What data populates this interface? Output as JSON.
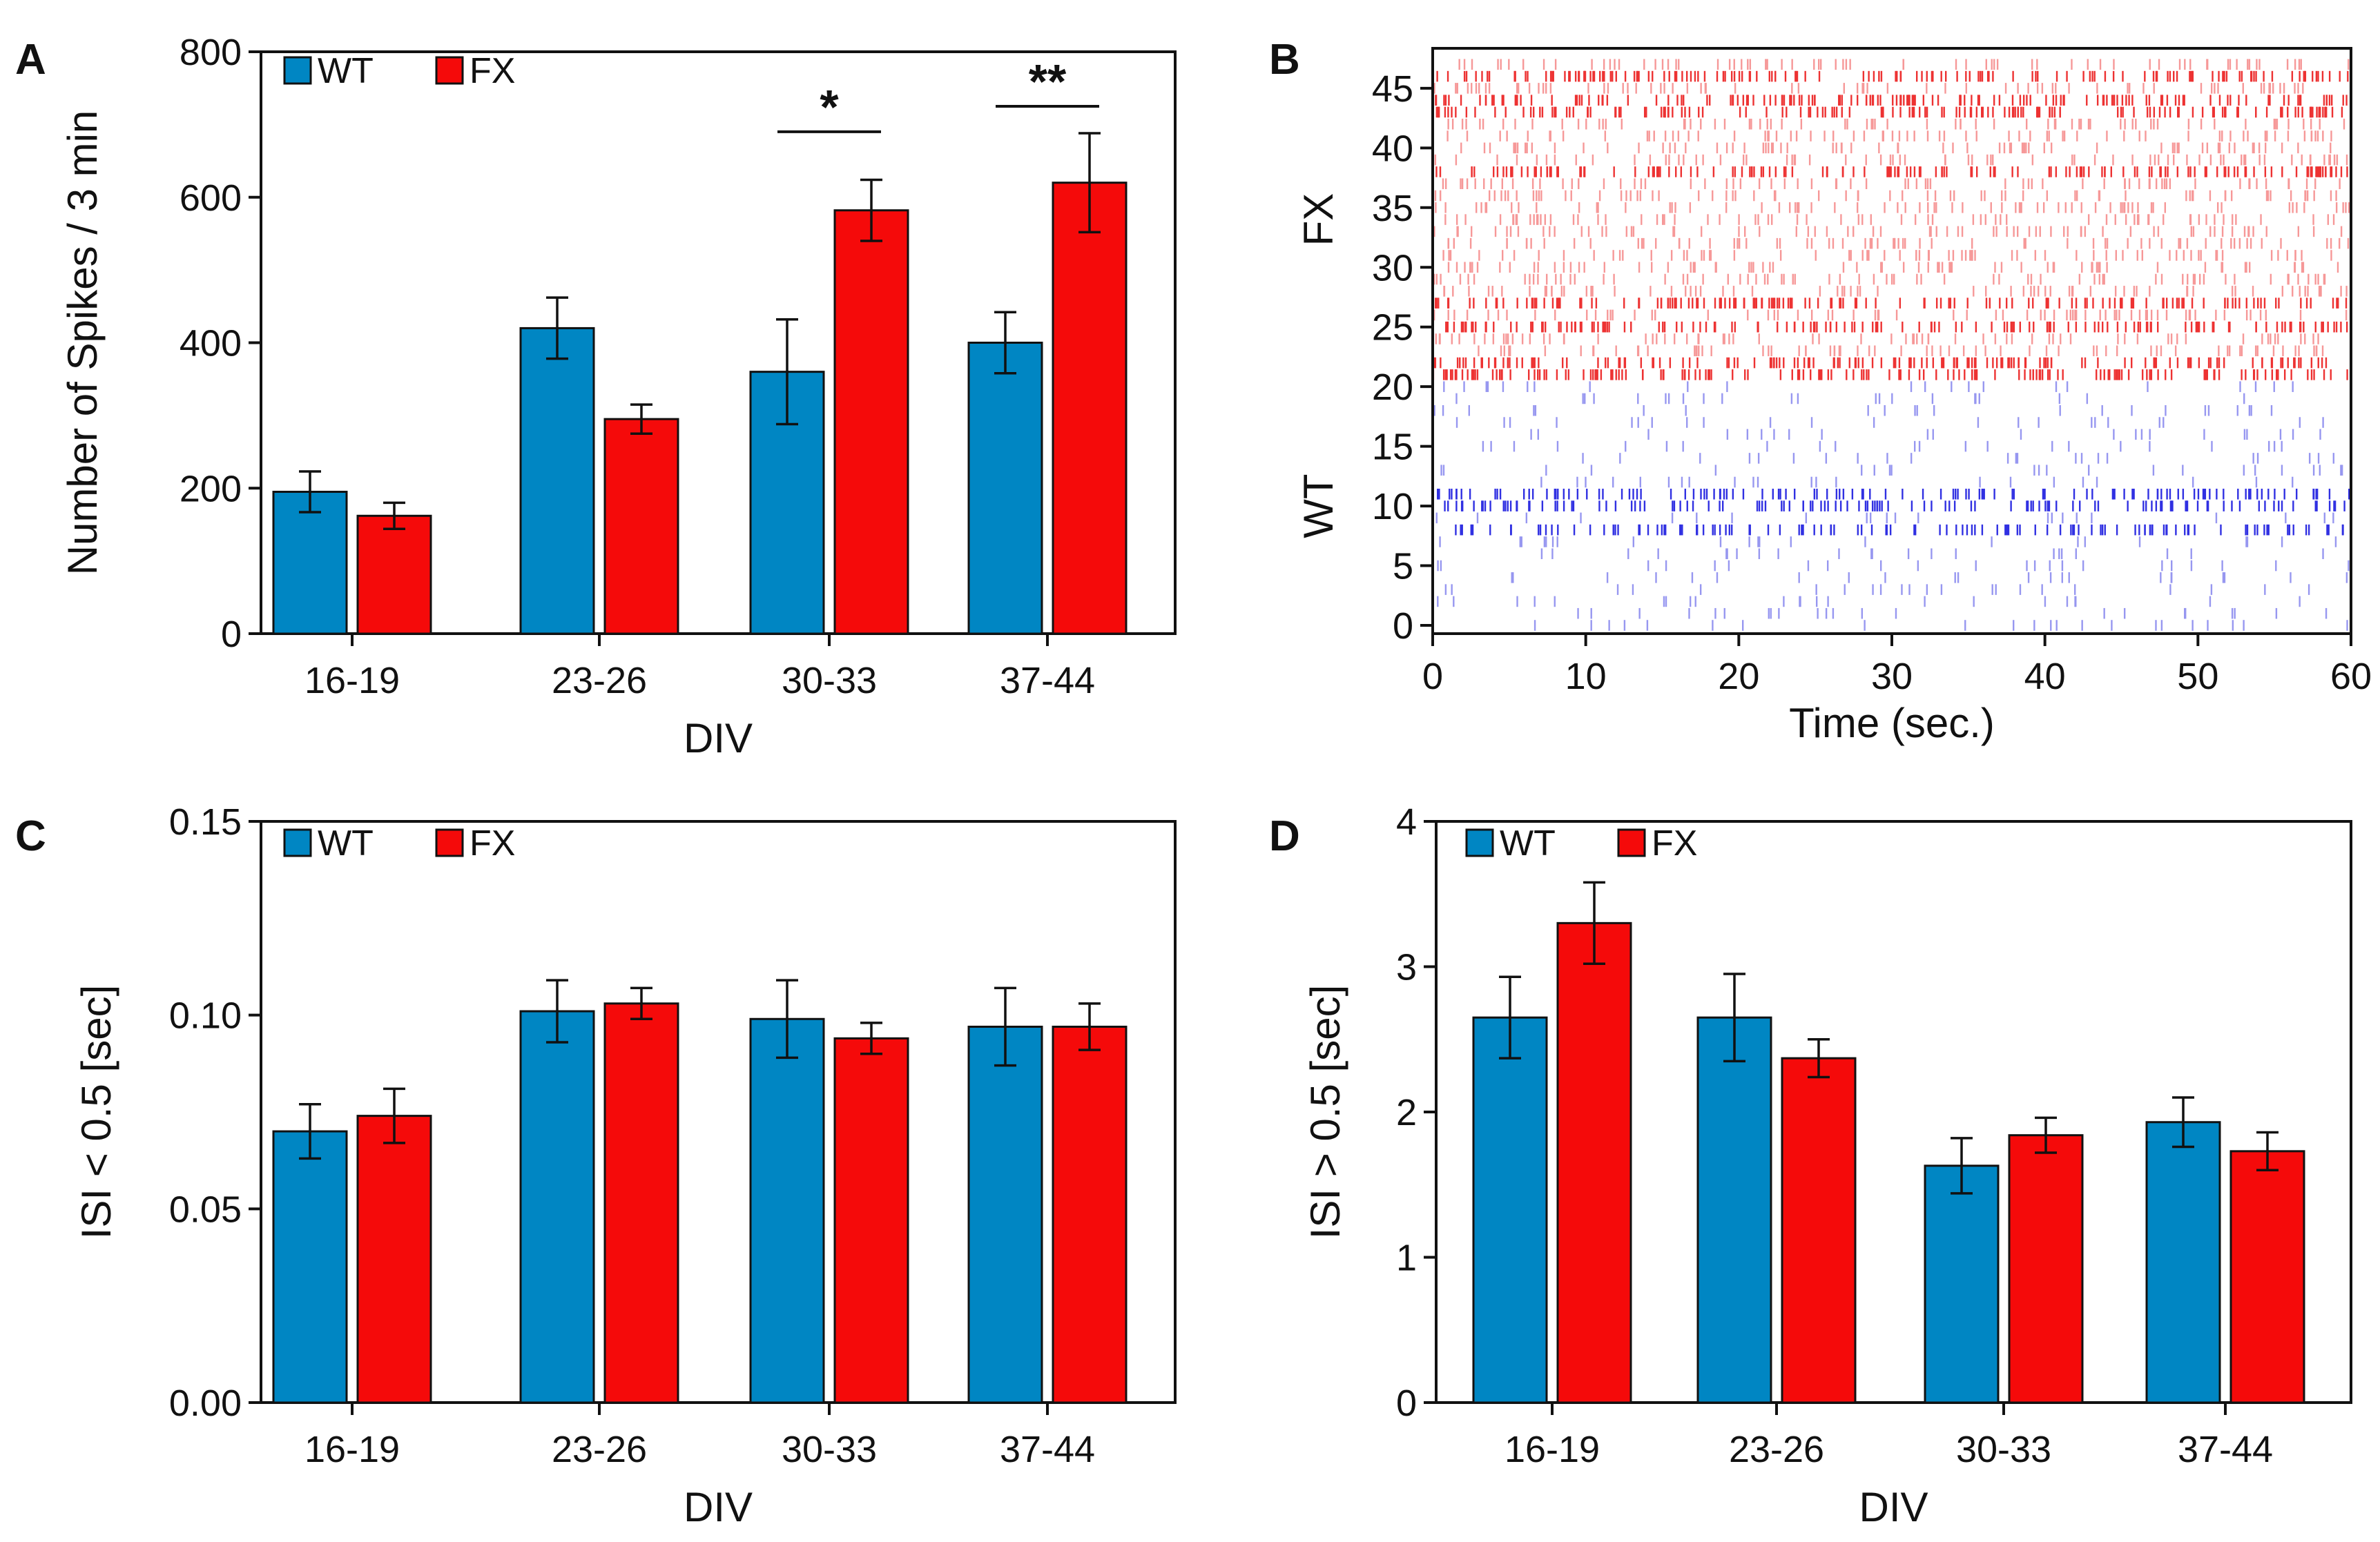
{
  "colors": {
    "WT": "#0086c3",
    "FX": "#f50a0a",
    "raster_WT": "#1a1adf",
    "raster_FX": "#ec1c1c"
  },
  "legend": {
    "wt": "WT",
    "fx": "FX"
  },
  "letters": {
    "A": "A",
    "B": "B",
    "C": "C",
    "D": "D"
  },
  "chart_data": [
    {
      "panel": "A",
      "type": "bar",
      "categories": [
        "16-19",
        "23-26",
        "30-33",
        "37-44"
      ],
      "series": [
        {
          "name": "WT",
          "values": [
            195,
            420,
            360,
            400
          ],
          "errors": [
            28,
            42,
            72,
            42
          ]
        },
        {
          "name": "FX",
          "values": [
            162,
            295,
            582,
            620
          ],
          "errors": [
            18,
            20,
            42,
            68
          ]
        }
      ],
      "xlabel": "DIV",
      "ylabel": "Number of Spikes / 3 min",
      "ylim": [
        0,
        800
      ],
      "yticks": [
        0,
        200,
        400,
        600,
        800
      ],
      "ytick_labels": [
        "0",
        "200",
        "400",
        "600",
        "800"
      ],
      "legend_position": "top-left",
      "significance": [
        {
          "category": "30-33",
          "label": "*",
          "bar_y": 690
        },
        {
          "category": "37-44",
          "label": "**",
          "bar_y": 725
        }
      ]
    },
    {
      "panel": "B",
      "type": "scatter",
      "kind": "raster",
      "xlabel": "Time (sec.)",
      "xlim": [
        0,
        60
      ],
      "xticks": [
        0,
        10,
        20,
        30,
        40,
        50,
        60
      ],
      "xtick_labels": [
        "0",
        "10",
        "20",
        "30",
        "40",
        "50",
        "60"
      ],
      "ylim": [
        0,
        48
      ],
      "yticks": [
        0,
        5,
        10,
        15,
        20,
        25,
        30,
        35,
        40,
        45
      ],
      "ytick_labels": [
        "0",
        "5",
        "10",
        "15",
        "20",
        "25",
        "30",
        "35",
        "40",
        "45"
      ],
      "group_labels": [
        {
          "name": "FX",
          "rows": [
            21,
            47
          ]
        },
        {
          "name": "WT",
          "rows": [
            0,
            20
          ]
        }
      ],
      "dense_rows": {
        "WT": [
          8,
          10,
          11
        ],
        "FX": [
          21,
          22,
          25,
          27,
          38,
          43,
          44,
          46
        ]
      }
    },
    {
      "panel": "C",
      "type": "bar",
      "categories": [
        "16-19",
        "23-26",
        "30-33",
        "37-44"
      ],
      "series": [
        {
          "name": "WT",
          "values": [
            0.07,
            0.101,
            0.099,
            0.097
          ],
          "errors": [
            0.007,
            0.008,
            0.01,
            0.01
          ]
        },
        {
          "name": "FX",
          "values": [
            0.074,
            0.103,
            0.094,
            0.097
          ],
          "errors": [
            0.007,
            0.004,
            0.004,
            0.006
          ]
        }
      ],
      "xlabel": "DIV",
      "ylabel": "ISI < 0.5 [sec]",
      "ylim": [
        0,
        0.15
      ],
      "yticks": [
        0,
        0.05,
        0.1,
        0.15
      ],
      "ytick_labels": [
        "0.00",
        "0.05",
        "0.10",
        "0.15"
      ],
      "legend_position": "top-left"
    },
    {
      "panel": "D",
      "type": "bar",
      "categories": [
        "16-19",
        "23-26",
        "30-33",
        "37-44"
      ],
      "series": [
        {
          "name": "WT",
          "values": [
            2.65,
            2.65,
            1.63,
            1.93
          ],
          "errors": [
            0.28,
            0.3,
            0.19,
            0.17
          ]
        },
        {
          "name": "FX",
          "values": [
            3.3,
            2.37,
            1.84,
            1.73
          ],
          "errors": [
            0.28,
            0.13,
            0.12,
            0.13
          ]
        }
      ],
      "xlabel": "DIV",
      "ylabel": "ISI > 0.5 [sec]",
      "ylim": [
        0,
        4
      ],
      "yticks": [
        0,
        1,
        2,
        3,
        4
      ],
      "ytick_labels": [
        "0",
        "1",
        "2",
        "3",
        "4"
      ],
      "legend_position": "top-left"
    }
  ]
}
